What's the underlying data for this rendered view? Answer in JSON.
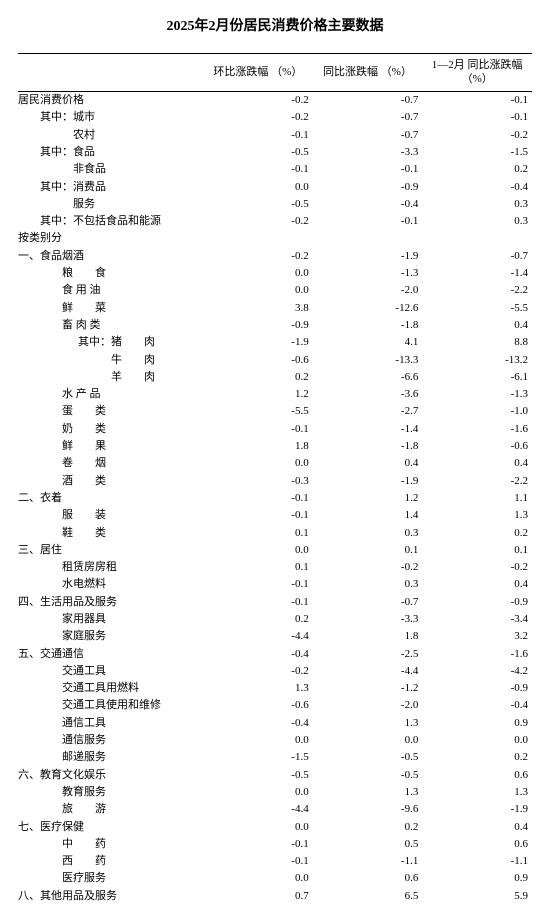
{
  "title": "2025年2月份居民消费价格主要数据",
  "headers": {
    "col1": "环比涨跌幅\n（%）",
    "col2": "同比涨跌幅\n（%）",
    "col3": "1—2月\n同比涨跌幅（%）"
  },
  "rows": [
    {
      "label": "居民消费价格",
      "indent": 0,
      "v1": "-0.2",
      "v2": "-0.7",
      "v3": "-0.1"
    },
    {
      "label": "其中：城市",
      "indent": 1,
      "v1": "-0.2",
      "v2": "-0.7",
      "v3": "-0.1"
    },
    {
      "label": "　　　农村",
      "indent": 1,
      "v1": "-0.1",
      "v2": "-0.7",
      "v3": "-0.2"
    },
    {
      "label": "其中：食品",
      "indent": 1,
      "v1": "-0.5",
      "v2": "-3.3",
      "v3": "-1.5"
    },
    {
      "label": "　　　非食品",
      "indent": 1,
      "v1": "-0.1",
      "v2": "-0.1",
      "v3": "0.2"
    },
    {
      "label": "其中：消费品",
      "indent": 1,
      "v1": "0.0",
      "v2": "-0.9",
      "v3": "-0.4"
    },
    {
      "label": "　　　服务",
      "indent": 1,
      "v1": "-0.5",
      "v2": "-0.4",
      "v3": "0.3"
    },
    {
      "label": "其中：不包括食品和能源",
      "indent": 1,
      "v1": "-0.2",
      "v2": "-0.1",
      "v3": "0.3"
    },
    {
      "label": "按类别分",
      "indent": 0,
      "v1": "",
      "v2": "",
      "v3": ""
    },
    {
      "label": "一、食品烟酒",
      "indent": 0,
      "v1": "-0.2",
      "v2": "-1.9",
      "v3": "-0.7"
    },
    {
      "label": "粮　　食",
      "indent": 2,
      "v1": "0.0",
      "v2": "-1.3",
      "v3": "-1.4"
    },
    {
      "label": "食 用 油",
      "indent": 2,
      "v1": "0.0",
      "v2": "-2.0",
      "v3": "-2.2"
    },
    {
      "label": "鲜　　菜",
      "indent": 2,
      "v1": "3.8",
      "v2": "-12.6",
      "v3": "-5.5"
    },
    {
      "label": "畜 肉 类",
      "indent": 2,
      "v1": "-0.9",
      "v2": "-1.8",
      "v3": "0.4"
    },
    {
      "label": "其中：猪　　肉",
      "indent": 3,
      "v1": "-1.9",
      "v2": "4.1",
      "v3": "8.8"
    },
    {
      "label": "　　　牛　　肉",
      "indent": 3,
      "v1": "-0.6",
      "v2": "-13.3",
      "v3": "-13.2"
    },
    {
      "label": "　　　羊　　肉",
      "indent": 3,
      "v1": "0.2",
      "v2": "-6.6",
      "v3": "-6.1"
    },
    {
      "label": "水 产 品",
      "indent": 2,
      "v1": "1.2",
      "v2": "-3.6",
      "v3": "-1.3"
    },
    {
      "label": "蛋　　类",
      "indent": 2,
      "v1": "-5.5",
      "v2": "-2.7",
      "v3": "-1.0"
    },
    {
      "label": "奶　　类",
      "indent": 2,
      "v1": "-0.1",
      "v2": "-1.4",
      "v3": "-1.6"
    },
    {
      "label": "鲜　　果",
      "indent": 2,
      "v1": "1.8",
      "v2": "-1.8",
      "v3": "-0.6"
    },
    {
      "label": "卷　　烟",
      "indent": 2,
      "v1": "0.0",
      "v2": "0.4",
      "v3": "0.4"
    },
    {
      "label": "酒　　类",
      "indent": 2,
      "v1": "-0.3",
      "v2": "-1.9",
      "v3": "-2.2"
    },
    {
      "label": "二、衣着",
      "indent": 0,
      "v1": "-0.1",
      "v2": "1.2",
      "v3": "1.1"
    },
    {
      "label": "服　　装",
      "indent": 2,
      "v1": "-0.1",
      "v2": "1.4",
      "v3": "1.3"
    },
    {
      "label": "鞋　　类",
      "indent": 2,
      "v1": "0.1",
      "v2": "0.3",
      "v3": "0.2"
    },
    {
      "label": "三、居住",
      "indent": 0,
      "v1": "0.0",
      "v2": "0.1",
      "v3": "0.1"
    },
    {
      "label": "租赁房房租",
      "indent": 2,
      "v1": "0.1",
      "v2": "-0.2",
      "v3": "-0.2"
    },
    {
      "label": "水电燃料",
      "indent": 2,
      "v1": "-0.1",
      "v2": "0.3",
      "v3": "0.4"
    },
    {
      "label": "四、生活用品及服务",
      "indent": 0,
      "v1": "-0.1",
      "v2": "-0.7",
      "v3": "-0.9"
    },
    {
      "label": "家用器具",
      "indent": 2,
      "v1": "0.2",
      "v2": "-3.3",
      "v3": "-3.4"
    },
    {
      "label": "家庭服务",
      "indent": 2,
      "v1": "-4.4",
      "v2": "1.8",
      "v3": "3.2"
    },
    {
      "label": "五、交通通信",
      "indent": 0,
      "v1": "-0.4",
      "v2": "-2.5",
      "v3": "-1.6"
    },
    {
      "label": "交通工具",
      "indent": 2,
      "v1": "-0.2",
      "v2": "-4.4",
      "v3": "-4.2"
    },
    {
      "label": "交通工具用燃料",
      "indent": 2,
      "v1": "1.3",
      "v2": "-1.2",
      "v3": "-0.9"
    },
    {
      "label": "交通工具使用和维修",
      "indent": 2,
      "v1": "-0.6",
      "v2": "-2.0",
      "v3": "-0.4"
    },
    {
      "label": "通信工具",
      "indent": 2,
      "v1": "-0.4",
      "v2": "1.3",
      "v3": "0.9"
    },
    {
      "label": "通信服务",
      "indent": 2,
      "v1": "0.0",
      "v2": "0.0",
      "v3": "0.0"
    },
    {
      "label": "邮递服务",
      "indent": 2,
      "v1": "-1.5",
      "v2": "-0.5",
      "v3": "0.2"
    },
    {
      "label": "六、教育文化娱乐",
      "indent": 0,
      "v1": "-0.5",
      "v2": "-0.5",
      "v3": "0.6"
    },
    {
      "label": "教育服务",
      "indent": 2,
      "v1": "0.0",
      "v2": "1.3",
      "v3": "1.3"
    },
    {
      "label": "旅　　游",
      "indent": 2,
      "v1": "-4.4",
      "v2": "-9.6",
      "v3": "-1.9"
    },
    {
      "label": "七、医疗保健",
      "indent": 0,
      "v1": "0.0",
      "v2": "0.2",
      "v3": "0.4"
    },
    {
      "label": "中　　药",
      "indent": 2,
      "v1": "-0.1",
      "v2": "0.5",
      "v3": "0.6"
    },
    {
      "label": "西　　药",
      "indent": 2,
      "v1": "-0.1",
      "v2": "-1.1",
      "v3": "-1.1"
    },
    {
      "label": "医疗服务",
      "indent": 2,
      "v1": "0.0",
      "v2": "0.6",
      "v3": "0.9"
    },
    {
      "label": "八、其他用品及服务",
      "indent": 0,
      "v1": "0.7",
      "v2": "6.5",
      "v3": "5.9"
    }
  ],
  "styling": {
    "background_color": "#ffffff",
    "text_color": "#000000",
    "border_color": "#000000",
    "title_fontsize": 14,
    "body_fontsize": 11,
    "font_family": "SimSun"
  }
}
